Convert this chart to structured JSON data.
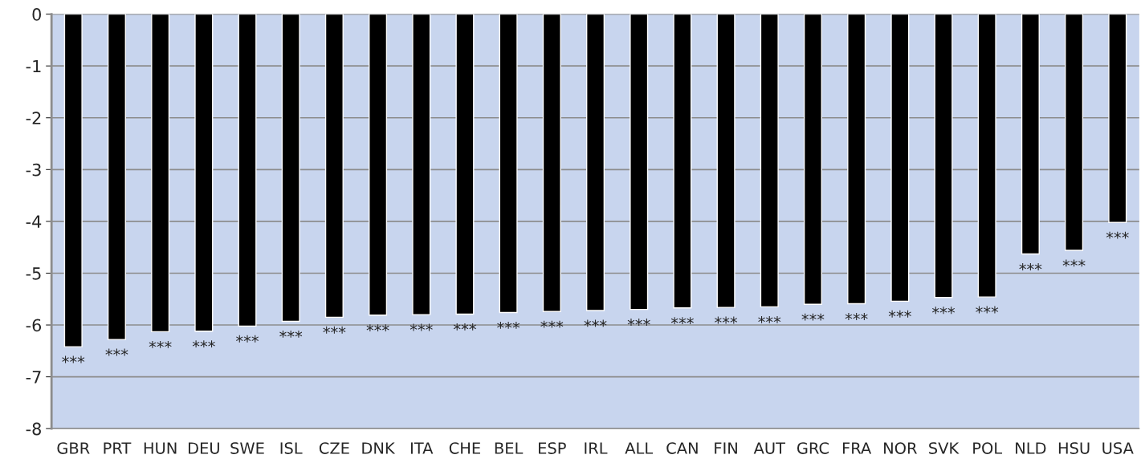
{
  "chart_data": {
    "type": "bar",
    "categories": [
      "GBR",
      "PRT",
      "HUN",
      "DEU",
      "SWE",
      "ISL",
      "CZE",
      "DNK",
      "ITA",
      "CHE",
      "BEL",
      "ESP",
      "IRL",
      "ALL",
      "CAN",
      "FIN",
      "AUT",
      "GRC",
      "FRA",
      "NOR",
      "SVK",
      "POL",
      "NLD",
      "HSU",
      "USA"
    ],
    "values": [
      -6.42,
      -6.28,
      -6.13,
      -6.12,
      -6.02,
      -5.93,
      -5.85,
      -5.81,
      -5.8,
      -5.79,
      -5.76,
      -5.74,
      -5.72,
      -5.7,
      -5.67,
      -5.66,
      -5.65,
      -5.6,
      -5.59,
      -5.54,
      -5.47,
      -5.46,
      -4.63,
      -4.56,
      -4.02
    ],
    "color": "#000000",
    "ylim": [
      -8,
      0
    ],
    "yticks": [
      -8,
      -7,
      -6,
      -5,
      -4,
      -3,
      -2,
      -1,
      0
    ],
    "grid": "y",
    "annotations": [
      {
        "text": "***",
        "x": "GBR",
        "y": -6.42
      },
      {
        "text": "***",
        "x": "PRT",
        "y": -6.28
      },
      {
        "text": "***",
        "x": "HUN",
        "y": -6.13
      },
      {
        "text": "***",
        "x": "DEU",
        "y": -6.12
      },
      {
        "text": "***",
        "x": "SWE",
        "y": -6.02
      },
      {
        "text": "***",
        "x": "ISL",
        "y": -5.93
      },
      {
        "text": "***",
        "x": "CZE",
        "y": -5.85
      },
      {
        "text": "***",
        "x": "DNK",
        "y": -5.81
      },
      {
        "text": "***",
        "x": "ITA",
        "y": -5.8
      },
      {
        "text": "***",
        "x": "CHE",
        "y": -5.79
      },
      {
        "text": "***",
        "x": "BEL",
        "y": -5.76
      },
      {
        "text": "***",
        "x": "ESP",
        "y": -5.74
      },
      {
        "text": "***",
        "x": "IRL",
        "y": -5.72
      },
      {
        "text": "***",
        "x": "ALL",
        "y": -5.7
      },
      {
        "text": "***",
        "x": "CAN",
        "y": -5.67
      },
      {
        "text": "***",
        "x": "FIN",
        "y": -5.66
      },
      {
        "text": "***",
        "x": "AUT",
        "y": -5.65
      },
      {
        "text": "***",
        "x": "GRC",
        "y": -5.6
      },
      {
        "text": "***",
        "x": "FRA",
        "y": -5.59
      },
      {
        "text": "***",
        "x": "NOR",
        "y": -5.54
      },
      {
        "text": "***",
        "x": "SVK",
        "y": -5.47
      },
      {
        "text": "***",
        "x": "POL",
        "y": -5.46
      },
      {
        "text": "***",
        "x": "NLD",
        "y": -4.63
      },
      {
        "text": "***",
        "x": "HSU",
        "y": -4.56
      },
      {
        "text": "***",
        "x": "USA",
        "y": -4.02
      }
    ]
  }
}
